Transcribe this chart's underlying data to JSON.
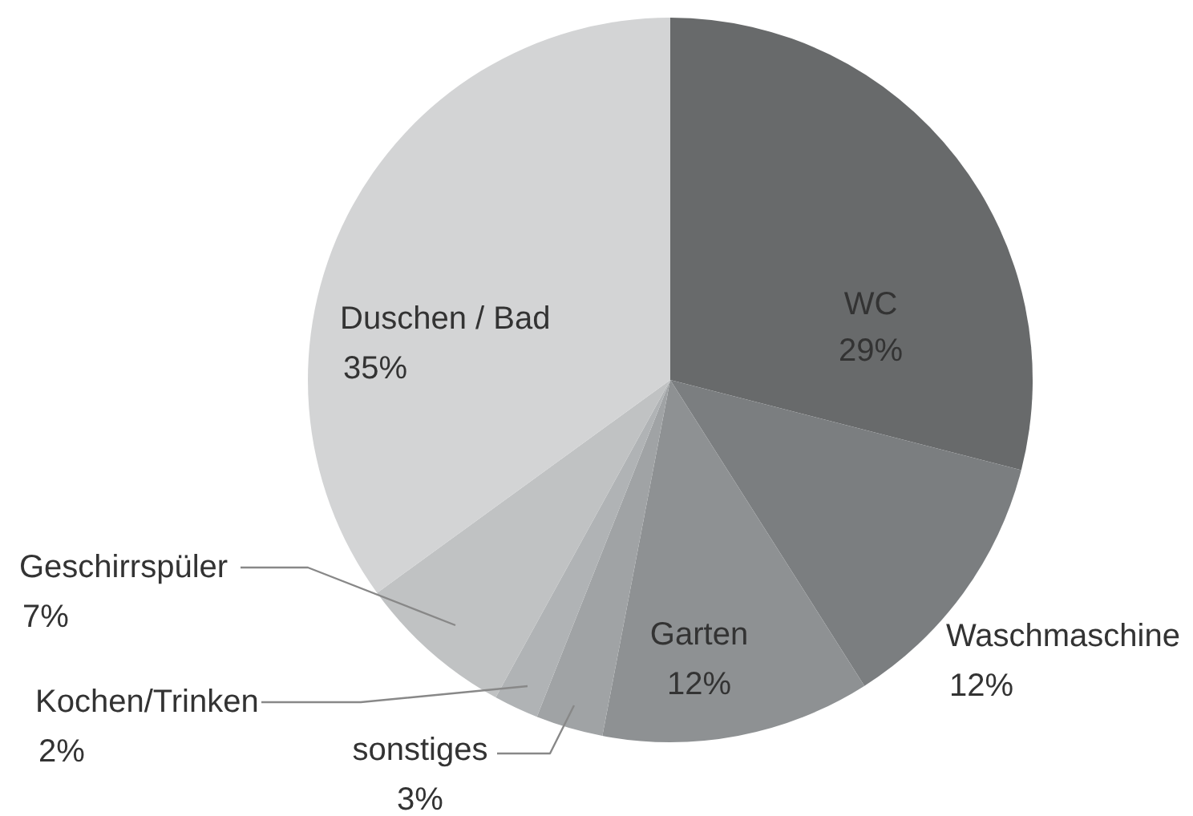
{
  "chart_data": {
    "type": "pie",
    "categories": [
      "WC",
      "Waschmaschine",
      "Garten",
      "sonstiges",
      "Kochen/Trinken",
      "Geschirrspüler",
      "Duschen / Bad"
    ],
    "values": [
      29,
      12,
      12,
      3,
      2,
      7,
      35
    ],
    "value_labels": [
      "29%",
      "12%",
      "12%",
      "3%",
      "2%",
      "7%",
      "35%"
    ],
    "colors": [
      "#686a6b",
      "#7b7e80",
      "#8e9193",
      "#a0a3a5",
      "#b0b3b5",
      "#c0c2c3",
      "#d3d4d5"
    ]
  }
}
